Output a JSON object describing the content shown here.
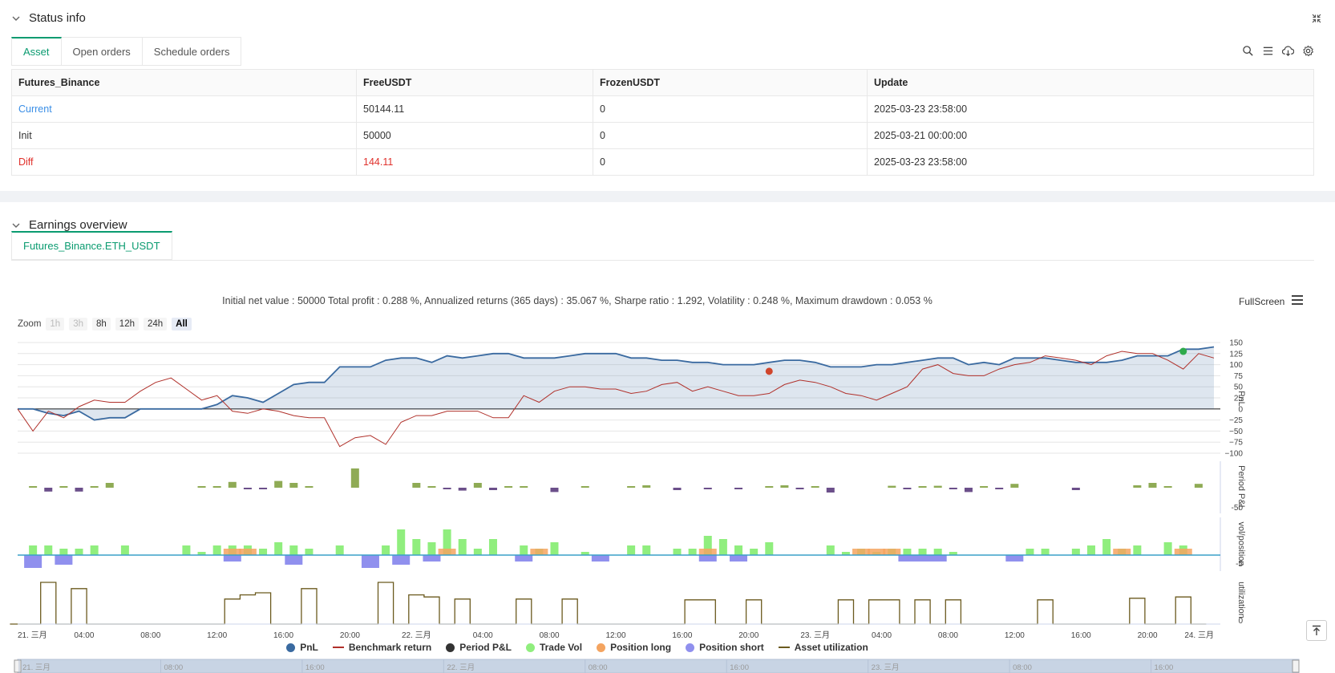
{
  "status": {
    "title": "Status info",
    "tabs": [
      "Asset",
      "Open orders",
      "Schedule orders"
    ],
    "table": {
      "headers": [
        "Futures_Binance",
        "FreeUSDT",
        "FrozenUSDT",
        "Update"
      ],
      "rows": [
        [
          "Current",
          "50144.11",
          "0",
          "2025-03-23 23:58:00"
        ],
        [
          "Init",
          "50000",
          "0",
          "2025-03-21 00:00:00"
        ],
        [
          "Diff",
          "144.11",
          "0",
          "2025-03-23 23:58:00"
        ]
      ]
    }
  },
  "earnings": {
    "title": "Earnings overview",
    "tab": "Futures_Binance.ETH_USDT",
    "summary": "Initial net value : 50000 Total profit : 0.288 %, Annualized returns (365 days) : 35.067 %, Sharpe ratio : 1.292, Volatility : 0.248 %, Maximum drawdown : 0.053 %",
    "fullscreen": "FullScreen",
    "zoom_label": "Zoom",
    "zoom_buttons": [
      "1h",
      "3h",
      "8h",
      "12h",
      "24h",
      "All"
    ]
  },
  "colors": {
    "pnl": "#3a6aa0",
    "benchmark": "#b0302a",
    "period_pos": "#8fab55",
    "period_neg": "#6b4f8a",
    "trade_vol": "#90ee7e",
    "position_long": "#f4a460",
    "position_short": "#9090ee",
    "utilization": "#6b5a1e",
    "accent": "#0a9b70"
  },
  "chart_data": {
    "type": "line",
    "x_ticks": [
      "21. 三月",
      "04:00",
      "08:00",
      "12:00",
      "16:00",
      "20:00",
      "22. 三月",
      "04:00",
      "08:00",
      "12:00",
      "16:00",
      "20:00",
      "23. 三月",
      "04:00",
      "08:00",
      "12:00",
      "16:00",
      "20:00",
      "24. 三月"
    ],
    "panes": [
      {
        "ylabel": "PnL",
        "yticks": [
          "150",
          "125",
          "100",
          "75",
          "50",
          "25",
          "0",
          "−25",
          "−50",
          "−75",
          "−100"
        ],
        "ylim": [
          -100,
          150
        ],
        "series": [
          {
            "name": "PnL",
            "values": [
              0,
              0,
              -10,
              -15,
              -5,
              -25,
              -20,
              -20,
              0,
              0,
              0,
              0,
              0,
              10,
              30,
              25,
              15,
              35,
              55,
              60,
              60,
              95,
              95,
              95,
              110,
              115,
              115,
              105,
              120,
              115,
              120,
              125,
              125,
              115,
              115,
              115,
              120,
              125,
              125,
              125,
              115,
              115,
              110,
              110,
              105,
              105,
              100,
              100,
              100,
              105,
              110,
              110,
              105,
              95,
              95,
              95,
              100,
              100,
              105,
              110,
              115,
              115,
              100,
              105,
              100,
              115,
              115,
              115,
              110,
              105,
              105,
              105,
              110,
              120,
              120,
              120,
              135,
              135,
              140
            ]
          },
          {
            "name": "Benchmark return",
            "values": [
              0,
              -50,
              -5,
              -20,
              5,
              20,
              15,
              15,
              40,
              60,
              70,
              45,
              20,
              30,
              -5,
              -10,
              0,
              -5,
              -15,
              -20,
              -20,
              -85,
              -65,
              -60,
              -80,
              -30,
              -15,
              -15,
              -5,
              -5,
              -5,
              -20,
              -20,
              30,
              15,
              40,
              50,
              50,
              45,
              45,
              35,
              40,
              55,
              60,
              40,
              50,
              40,
              30,
              30,
              35,
              55,
              65,
              60,
              50,
              35,
              30,
              20,
              35,
              50,
              90,
              100,
              80,
              75,
              75,
              90,
              100,
              105,
              120,
              115,
              110,
              100,
              120,
              130,
              125,
              125,
              110,
              90,
              125,
              115
            ]
          }
        ]
      },
      {
        "ylabel": "Period P&L",
        "yticks": [
          "-50"
        ],
        "series": [
          {
            "name": "Period P&L",
            "values": [
              0,
              1,
              -8,
              2,
              -8,
              2,
              10,
              0,
              0,
              0,
              0,
              0,
              2,
              3,
              12,
              -2,
              -3,
              14,
              10,
              1,
              0,
              0,
              40,
              0,
              0,
              0,
              10,
              3,
              -1,
              -6,
              10,
              -5,
              2,
              2,
              0,
              -9,
              0,
              1,
              0,
              0,
              2,
              5,
              0,
              -5,
              0,
              -3,
              0,
              -3,
              0,
              1,
              5,
              -1,
              3,
              -10,
              0,
              0,
              0,
              4,
              -2,
              3,
              4,
              -2,
              -9,
              3,
              -3,
              8,
              0,
              0,
              0,
              -5,
              0,
              0,
              0,
              5,
              10,
              3,
              0,
              8
            ]
          }
        ]
      },
      {
        "ylabel": "vol/position",
        "yticks": [
          "-5"
        ],
        "series": [
          {
            "name": "Trade Vol",
            "values": [
              0,
              3,
              3,
              2,
              2,
              3,
              0,
              3,
              0,
              0,
              0,
              3,
              1,
              3,
              3,
              3,
              2,
              4,
              3,
              2,
              0,
              3,
              0,
              0,
              3,
              8,
              5,
              4,
              8,
              5,
              2,
              5,
              0,
              3,
              2,
              4,
              0,
              1,
              0,
              0,
              3,
              3,
              0,
              2,
              2,
              6,
              5,
              3,
              2,
              4,
              0,
              0,
              0,
              3,
              1,
              2,
              1,
              2,
              2,
              2,
              2,
              1,
              0,
              0,
              0,
              0,
              2,
              2,
              0,
              2,
              3,
              5,
              2,
              3,
              0,
              4,
              3,
              0
            ]
          },
          {
            "name": "Position long",
            "values": [
              0,
              0,
              0,
              0,
              0,
              0,
              0,
              0,
              0,
              0,
              0,
              0,
              0,
              0,
              2,
              2,
              0,
              0,
              0,
              0,
              0,
              0,
              0,
              0,
              0,
              0,
              0,
              0,
              2,
              0,
              0,
              0,
              0,
              0,
              2,
              0,
              0,
              0,
              0,
              0,
              0,
              0,
              0,
              0,
              0,
              2,
              0,
              0,
              0,
              0,
              0,
              0,
              0,
              0,
              0,
              2,
              2,
              2,
              0,
              0,
              0,
              0,
              0,
              0,
              0,
              0,
              0,
              0,
              0,
              0,
              0,
              0,
              2,
              0,
              0,
              0,
              2,
              0
            ]
          },
          {
            "name": "Position short",
            "values": [
              0,
              -4,
              0,
              -3,
              0,
              0,
              0,
              0,
              0,
              0,
              0,
              0,
              0,
              0,
              -2,
              0,
              0,
              0,
              -3,
              0,
              0,
              0,
              0,
              -4,
              0,
              -3,
              0,
              -2,
              0,
              0,
              0,
              0,
              0,
              -2,
              0,
              0,
              0,
              0,
              -2,
              0,
              0,
              0,
              0,
              0,
              0,
              -2,
              0,
              -2,
              0,
              0,
              0,
              0,
              0,
              0,
              0,
              0,
              0,
              0,
              -2,
              -2,
              -2,
              0,
              0,
              0,
              0,
              -2,
              0,
              0,
              0,
              0,
              0,
              0,
              0,
              0,
              0,
              0,
              0,
              0
            ]
          }
        ]
      },
      {
        "ylabel": "utilization",
        "yticks": [
          "0"
        ],
        "series": [
          {
            "name": "Asset utilization",
            "values": [
              0,
              0,
              1,
              0,
              0.85,
              0,
              0,
              0,
              0,
              0,
              0,
              0,
              0,
              0,
              0.6,
              0.7,
              0.75,
              0,
              0,
              0.85,
              0,
              0,
              0,
              0,
              1,
              0,
              0.7,
              0.65,
              0,
              0.6,
              0,
              0,
              0,
              0.6,
              0,
              0,
              0.6,
              0,
              0,
              0,
              0,
              0,
              0,
              0,
              0.58,
              0.58,
              0,
              0,
              0.58,
              0,
              0,
              0,
              0,
              0,
              0.58,
              0,
              0.58,
              0.58,
              0,
              0.58,
              0,
              0.58,
              0,
              0,
              0,
              0,
              0,
              0.58,
              0,
              0,
              0,
              0,
              0,
              0.62,
              0,
              0,
              0.65,
              0
            ]
          }
        ]
      }
    ],
    "legend": [
      "PnL",
      "Benchmark return",
      "Period P&L",
      "Trade Vol",
      "Position long",
      "Position short",
      "Asset utilization"
    ],
    "navigator_ticks": [
      "21. 三月",
      "08:00",
      "16:00",
      "22. 三月",
      "08:00",
      "16:00",
      "23. 三月",
      "08:00",
      "16:00"
    ]
  }
}
